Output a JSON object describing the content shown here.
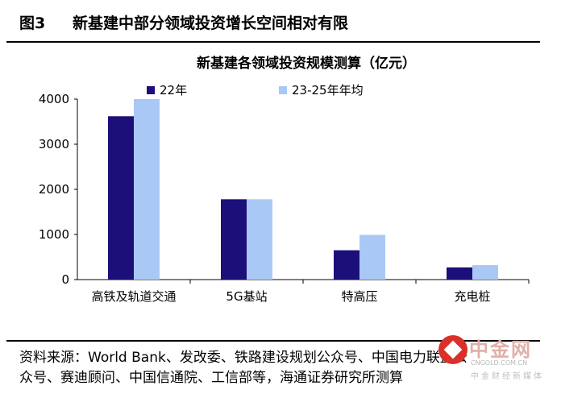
{
  "figure": {
    "label": "图3",
    "title": "新基建中部分领域投资增长空间相对有限"
  },
  "source_text": "资料来源：World Bank、发改委、铁路建设规划公众号、中国电力联盟公众号、赛迪顾问、中国信通院、工信部等，海通证券研究所测算",
  "watermark": {
    "main": "中金网",
    "sub": "CNGOLD.COM.CN",
    "sub2": "中金财经新媒体"
  },
  "colors": {
    "series_22": "#1c0f7a",
    "series_avg": "#a9c8f5",
    "axis": "#000000"
  },
  "chart_data": {
    "type": "bar",
    "title": "新基建各领域投资规模测算（亿元）",
    "categories": [
      "高铁及轨道交通",
      "5G基站",
      "特高压",
      "充电桩"
    ],
    "series": [
      {
        "name": "22年",
        "values": [
          3620,
          1780,
          650,
          270
        ]
      },
      {
        "name": "23-25年年均",
        "values": [
          4000,
          1780,
          990,
          320
        ]
      }
    ],
    "ylim": [
      0,
      4000
    ],
    "yticks": [
      0,
      1000,
      2000,
      3000,
      4000
    ],
    "legend": "top",
    "grid": false
  }
}
